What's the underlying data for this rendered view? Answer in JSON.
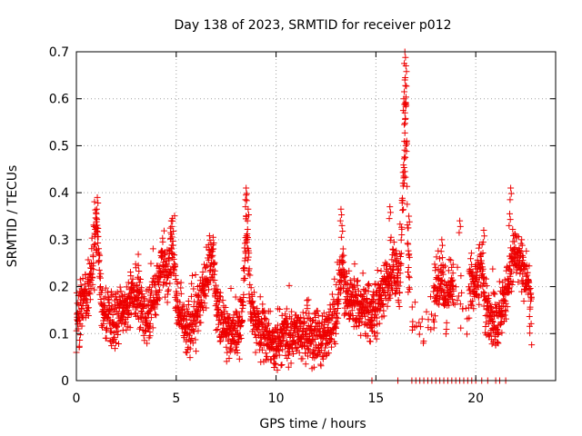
{
  "chart_data": {
    "type": "scatter",
    "title": "Day 138 of 2023, SRMTID for receiver p012",
    "xlabel": "GPS time / hours",
    "ylabel": "SRMTID / TECUs",
    "xlim": [
      0,
      24
    ],
    "ylim": [
      0,
      0.7
    ],
    "xticks": [
      0,
      5,
      10,
      15,
      20
    ],
    "xtick_labels": [
      "0",
      "5",
      "10",
      "15",
      "20"
    ],
    "yticks": [
      0,
      0.1,
      0.2,
      0.3,
      0.4,
      0.5,
      0.6,
      0.7
    ],
    "ytick_labels": [
      "0",
      "0.1",
      "0.2",
      "0.3",
      "0.4",
      "0.5",
      "0.6",
      "0.7"
    ],
    "grid": true,
    "marker": "+",
    "series": [
      {
        "name": "p012",
        "color": "#ee0000",
        "profile": [
          [
            0.0,
            0.12
          ],
          [
            0.3,
            0.16
          ],
          [
            0.6,
            0.19
          ],
          [
            0.9,
            0.26
          ],
          [
            1.0,
            0.34
          ],
          [
            1.1,
            0.3
          ],
          [
            1.2,
            0.18
          ],
          [
            1.5,
            0.14
          ],
          [
            2.0,
            0.13
          ],
          [
            2.5,
            0.16
          ],
          [
            3.0,
            0.18
          ],
          [
            3.5,
            0.13
          ],
          [
            4.0,
            0.19
          ],
          [
            4.3,
            0.26
          ],
          [
            4.6,
            0.21
          ],
          [
            4.8,
            0.3
          ],
          [
            5.0,
            0.18
          ],
          [
            5.5,
            0.11
          ],
          [
            6.0,
            0.13
          ],
          [
            6.5,
            0.22
          ],
          [
            6.8,
            0.27
          ],
          [
            7.0,
            0.15
          ],
          [
            7.5,
            0.11
          ],
          [
            8.0,
            0.1
          ],
          [
            8.3,
            0.14
          ],
          [
            8.5,
            0.33
          ],
          [
            8.7,
            0.18
          ],
          [
            9.0,
            0.12
          ],
          [
            9.5,
            0.09
          ],
          [
            10.0,
            0.07
          ],
          [
            10.5,
            0.1
          ],
          [
            11.0,
            0.09
          ],
          [
            11.5,
            0.1
          ],
          [
            12.0,
            0.09
          ],
          [
            12.5,
            0.1
          ],
          [
            13.0,
            0.12
          ],
          [
            13.3,
            0.24
          ],
          [
            13.5,
            0.17
          ],
          [
            14.0,
            0.17
          ],
          [
            14.5,
            0.14
          ],
          [
            15.0,
            0.15
          ],
          [
            15.5,
            0.2
          ],
          [
            15.9,
            0.24
          ],
          [
            16.2,
            0.21
          ],
          [
            16.4,
            0.45
          ],
          [
            16.5,
            0.62
          ],
          [
            16.6,
            0.28
          ],
          [
            16.8,
            0.12
          ],
          [
            17.0,
            0.1
          ],
          [
            17.5,
            0.12
          ],
          [
            18.0,
            0.18
          ],
          [
            18.3,
            0.23
          ],
          [
            18.5,
            0.16
          ],
          [
            18.8,
            0.22
          ],
          [
            19.0,
            0.18
          ],
          [
            19.5,
            0.16
          ],
          [
            19.8,
            0.22
          ],
          [
            20.0,
            0.2
          ],
          [
            20.3,
            0.25
          ],
          [
            20.5,
            0.15
          ],
          [
            21.0,
            0.12
          ],
          [
            21.3,
            0.16
          ],
          [
            21.6,
            0.2
          ],
          [
            21.9,
            0.28
          ],
          [
            22.2,
            0.24
          ],
          [
            22.6,
            0.21
          ],
          [
            22.8,
            0.13
          ]
        ],
        "peaks": [
          [
            1.05,
            0.39
          ],
          [
            1.0,
            0.355
          ],
          [
            4.75,
            0.34
          ],
          [
            6.85,
            0.305
          ],
          [
            8.5,
            0.41
          ],
          [
            8.5,
            0.395
          ],
          [
            8.6,
            0.365
          ],
          [
            13.25,
            0.365
          ],
          [
            13.3,
            0.33
          ],
          [
            15.7,
            0.37
          ],
          [
            16.45,
            0.7
          ],
          [
            16.5,
            0.67
          ],
          [
            16.45,
            0.64
          ],
          [
            16.4,
            0.6
          ],
          [
            16.45,
            0.57
          ],
          [
            16.5,
            0.5
          ],
          [
            16.45,
            0.445
          ],
          [
            16.65,
            0.35
          ],
          [
            18.3,
            0.3
          ],
          [
            19.2,
            0.34
          ],
          [
            20.4,
            0.32
          ],
          [
            21.75,
            0.41
          ],
          [
            21.7,
            0.355
          ],
          [
            22.3,
            0.3
          ],
          [
            0.2,
            0.215
          ],
          [
            3.1,
            0.245
          ]
        ],
        "baseline_zero": [
          [
            14.8,
            0
          ],
          [
            16.1,
            0
          ],
          [
            16.8,
            0
          ],
          [
            17.0,
            0
          ],
          [
            17.2,
            0
          ],
          [
            17.4,
            0
          ],
          [
            17.6,
            0
          ],
          [
            17.8,
            0
          ],
          [
            18.0,
            0
          ],
          [
            18.2,
            0
          ],
          [
            18.4,
            0
          ],
          [
            18.6,
            0
          ],
          [
            18.8,
            0
          ],
          [
            19.0,
            0
          ],
          [
            19.2,
            0
          ],
          [
            19.4,
            0
          ],
          [
            19.6,
            0
          ],
          [
            19.8,
            0
          ],
          [
            20.0,
            0
          ],
          [
            20.3,
            0
          ],
          [
            20.6,
            0
          ],
          [
            21.0,
            0
          ],
          [
            21.2,
            0
          ],
          [
            21.5,
            0
          ]
        ],
        "points_per_hour": 120,
        "spread": 0.028
      }
    ]
  }
}
